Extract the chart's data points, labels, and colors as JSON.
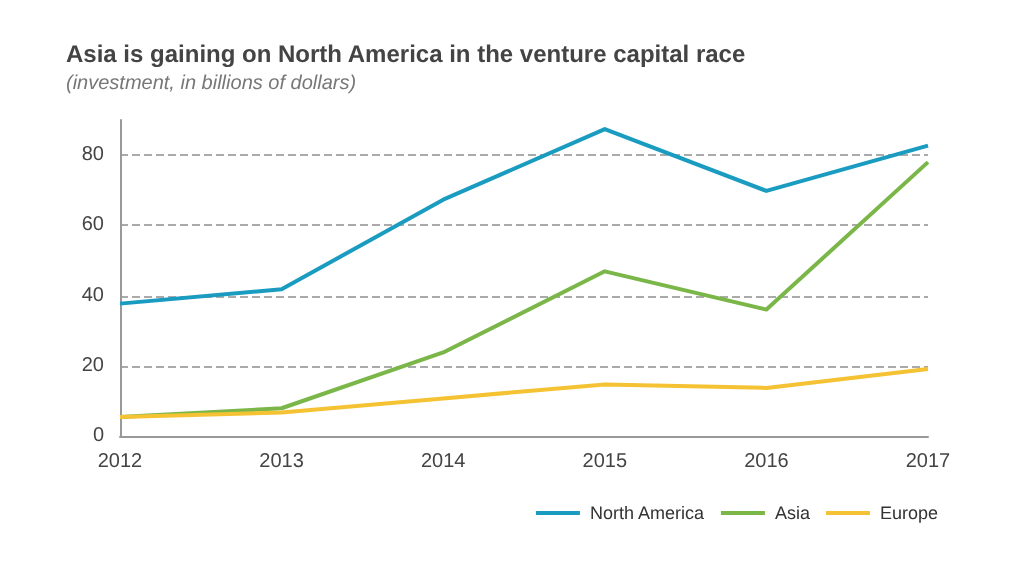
{
  "chart_data": {
    "type": "line",
    "title": "Asia is gaining on North America in the venture capital race",
    "subtitle": "(investment, in billions of dollars)",
    "categories": [
      "2012",
      "2013",
      "2014",
      "2015",
      "2016",
      "2017"
    ],
    "series": [
      {
        "name": "North America",
        "color": "#1a9bc0",
        "values": [
          37.7,
          41.8,
          67.3,
          87.4,
          69.8,
          82.7
        ]
      },
      {
        "name": "Asia",
        "color": "#7ab648",
        "values": [
          5.4,
          7.9,
          23.8,
          46.9,
          36,
          78
        ]
      },
      {
        "name": "Europe",
        "color": "#f4c232",
        "values": [
          5.4,
          6.7,
          10.7,
          14.7,
          13.7,
          19.1
        ]
      }
    ],
    "ylim": [
      0,
      90
    ],
    "yticks": [
      0,
      20,
      40,
      60,
      80
    ],
    "grid": "y",
    "legend": "bottom right",
    "marker": "none",
    "line_style": "solid"
  }
}
